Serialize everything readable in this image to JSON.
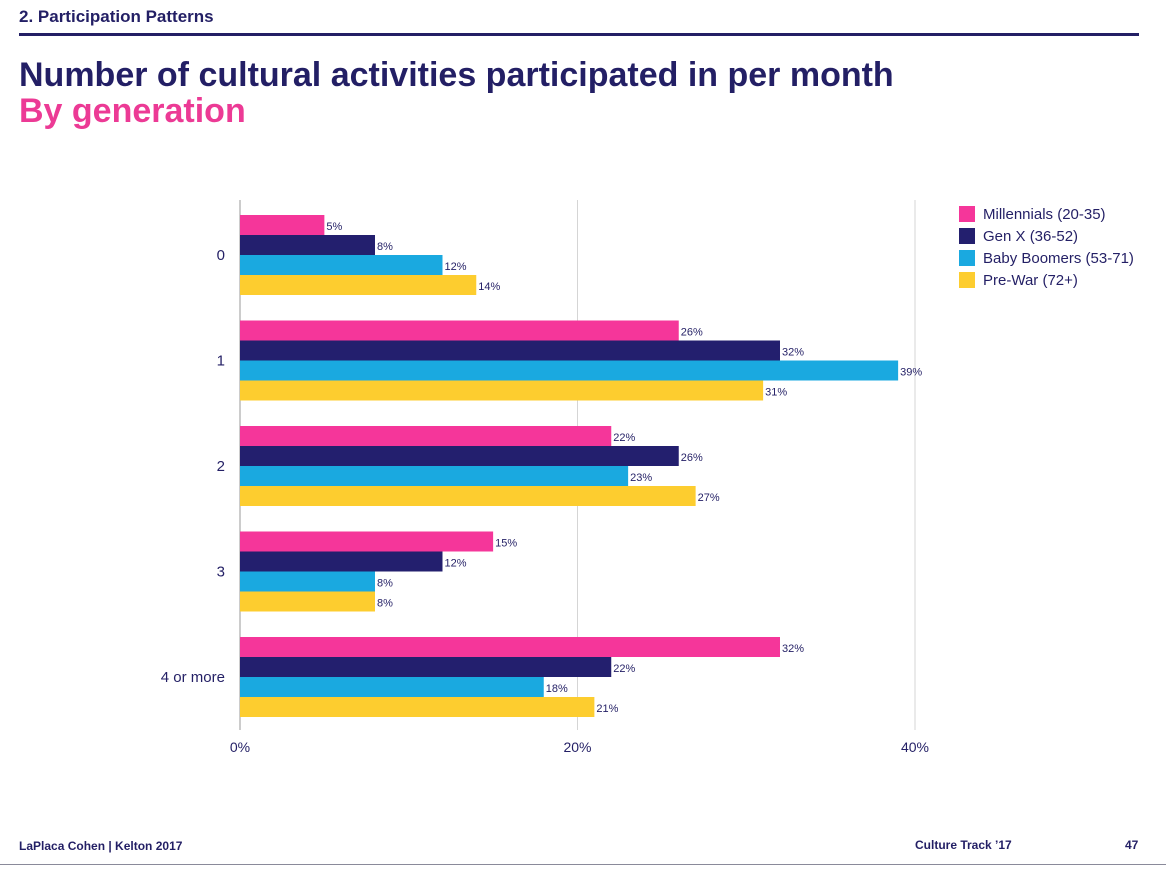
{
  "header": {
    "section": "2. Participation Patterns",
    "title": "Number of cultural activities participated in per month",
    "subtitle": "By generation"
  },
  "footer": {
    "left": "LaPlaca Cohen | Kelton 2017",
    "center": "Culture Track ’17",
    "page": "47"
  },
  "colors": {
    "navy": "#231f65",
    "pink": "#ec3a95",
    "millennials": "#f5369a",
    "genx": "#231f6e",
    "boomers": "#1aa9e0",
    "prewar": "#fdcd2f"
  },
  "chart_data": {
    "type": "bar",
    "orientation": "horizontal",
    "title": "Number of cultural activities participated in per month",
    "subtitle": "By generation",
    "categories": [
      "0",
      "1",
      "2",
      "3",
      "4 or more"
    ],
    "series": [
      {
        "name": "Millennials (20-35)",
        "color": "#f5369a",
        "values": [
          5,
          26,
          22,
          15,
          32
        ]
      },
      {
        "name": "Gen X (36-52)",
        "color": "#231f6e",
        "values": [
          8,
          32,
          26,
          12,
          22
        ]
      },
      {
        "name": "Baby Boomers (53-71)",
        "color": "#1aa9e0",
        "values": [
          12,
          39,
          23,
          8,
          18
        ]
      },
      {
        "name": "Pre-War (72+)",
        "color": "#fdcd2f",
        "values": [
          14,
          31,
          27,
          8,
          21
        ]
      }
    ],
    "xticks": [
      "0%",
      "20%",
      "40%"
    ],
    "xlim": [
      0,
      40
    ],
    "value_suffix": "%",
    "grid": true,
    "legend": "top-right"
  }
}
